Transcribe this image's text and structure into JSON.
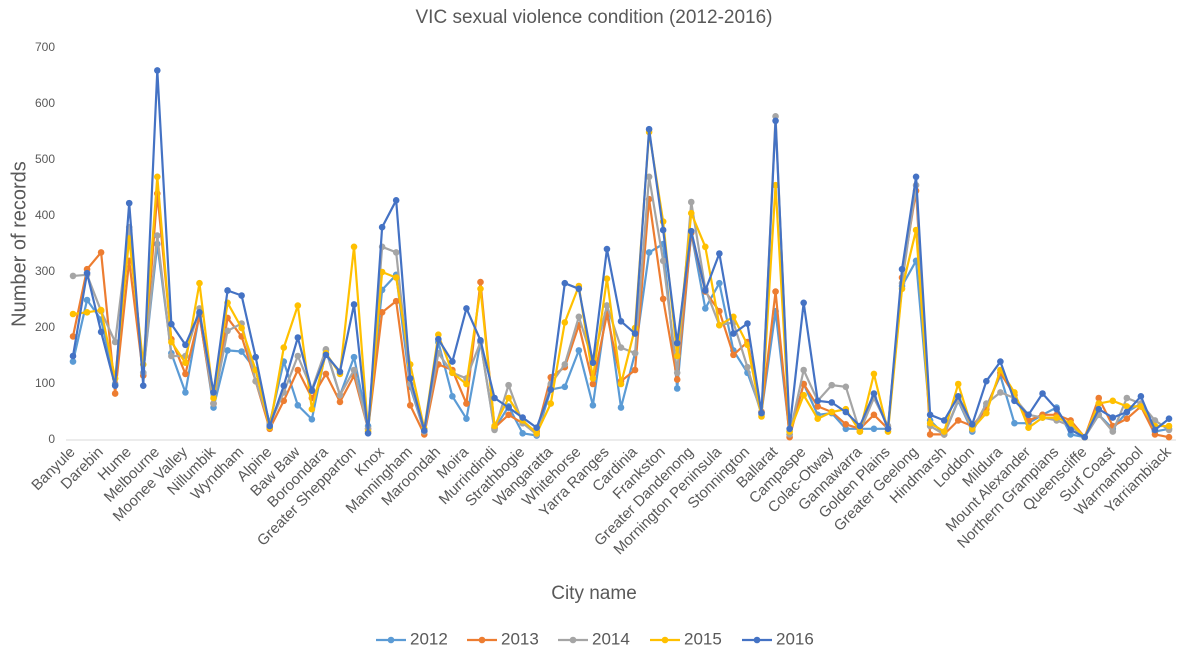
{
  "chart_data": {
    "type": "line",
    "title": "VIC sexual violence condition (2012-2016)",
    "x_label": "City name",
    "y_label": "Number of records",
    "categories": [
      "Banyule",
      null,
      "Darebin",
      null,
      "Hume",
      null,
      "Melbourne",
      null,
      "Moonee Valley",
      null,
      "Nillumbik",
      null,
      "Wyndham",
      null,
      "Alpine",
      null,
      "Baw Baw",
      null,
      "Boroondara",
      null,
      "Greater Shepparton",
      null,
      "Knox",
      null,
      "Manningham",
      null,
      "Maroondah",
      null,
      "Moira",
      null,
      "Murrindindi",
      null,
      "Strathbogie",
      null,
      "Wangaratta",
      null,
      "Whitehorse",
      null,
      "Yarra Ranges",
      null,
      "Cardinia",
      null,
      "Frankston",
      null,
      "Greater Dandenong",
      null,
      "Mornington Peninsula",
      null,
      "Stonnington",
      null,
      "Ballarat",
      null,
      "Campaspe",
      null,
      "Colac-Otway",
      null,
      "Gannawarra",
      null,
      "Golden Plains",
      null,
      "Greater Geelong",
      null,
      "Hindmarsh",
      null,
      "Loddon",
      null,
      "Mildura",
      null,
      "Mount Alexander",
      null,
      "Northern Grampians",
      null,
      "Queenscliffe",
      null,
      "Surf Coast",
      null,
      "Warrnambool",
      null,
      "Yarriambiack"
    ],
    "series": [
      {
        "name": "2012",
        "color": "#5b9bd5",
        "values": [
          140,
          250,
          215,
          100,
          375,
          120,
          350,
          155,
          85,
          225,
          58,
          160,
          158,
          125,
          30,
          140,
          62,
          37,
          160,
          80,
          148,
          25,
          268,
          295,
          95,
          15,
          175,
          78,
          38,
          175,
          20,
          60,
          12,
          8,
          90,
          95,
          160,
          62,
          240,
          58,
          155,
          335,
          350,
          92,
          370,
          235,
          280,
          160,
          120,
          50,
          230,
          10,
          100,
          45,
          48,
          20,
          20,
          20,
          20,
          275,
          320,
          35,
          10,
          70,
          15,
          60,
          115,
          30,
          30,
          45,
          58,
          10,
          5,
          45,
          20,
          50,
          65,
          15,
          20
        ]
      },
      {
        "name": "2013",
        "color": "#ed7d31",
        "values": [
          185,
          305,
          335,
          83,
          320,
          115,
          440,
          180,
          118,
          222,
          65,
          218,
          185,
          105,
          20,
          70,
          125,
          75,
          118,
          68,
          115,
          20,
          228,
          248,
          62,
          10,
          135,
          125,
          65,
          282,
          22,
          45,
          30,
          15,
          112,
          130,
          205,
          100,
          225,
          105,
          125,
          430,
          252,
          108,
          370,
          265,
          230,
          152,
          175,
          50,
          265,
          5,
          100,
          60,
          50,
          28,
          20,
          45,
          20,
          290,
          445,
          10,
          10,
          35,
          25,
          55,
          120,
          80,
          35,
          45,
          45,
          35,
          5,
          75,
          25,
          38,
          60,
          10,
          5
        ]
      },
      {
        "name": "2014",
        "color": "#a5a5a5",
        "values": [
          293,
          295,
          230,
          175,
          380,
          120,
          365,
          150,
          150,
          235,
          65,
          195,
          208,
          105,
          28,
          85,
          150,
          90,
          162,
          80,
          125,
          20,
          345,
          335,
          100,
          15,
          155,
          120,
          110,
          175,
          18,
          98,
          30,
          10,
          100,
          135,
          220,
          140,
          240,
          165,
          155,
          470,
          320,
          120,
          425,
          270,
          205,
          210,
          130,
          45,
          578,
          10,
          125,
          70,
          98,
          95,
          15,
          75,
          25,
          280,
          455,
          25,
          10,
          72,
          18,
          65,
          85,
          75,
          45,
          40,
          35,
          25,
          5,
          45,
          15,
          75,
          65,
          35,
          18
        ]
      },
      {
        "name": "2015",
        "color": "#ffc000",
        "values": [
          225,
          228,
          232,
          110,
          360,
          135,
          470,
          175,
          138,
          280,
          75,
          245,
          200,
          125,
          22,
          165,
          240,
          55,
          155,
          118,
          345,
          15,
          300,
          290,
          135,
          20,
          188,
          120,
          100,
          270,
          25,
          75,
          35,
          12,
          65,
          210,
          275,
          110,
          288,
          100,
          200,
          550,
          390,
          150,
          405,
          345,
          205,
          220,
          170,
          42,
          455,
          15,
          80,
          38,
          50,
          55,
          15,
          118,
          15,
          270,
          375,
          30,
          15,
          100,
          20,
          48,
          125,
          85,
          22,
          40,
          40,
          30,
          5,
          65,
          70,
          60,
          60,
          25,
          25
        ]
      },
      {
        "name": "2016",
        "color": "#4472c4",
        "values": [
          150,
          298,
          193,
          97,
          423,
          97,
          660,
          207,
          170,
          228,
          85,
          267,
          258,
          148,
          25,
          97,
          183,
          88,
          152,
          122,
          242,
          12,
          380,
          428,
          110,
          17,
          180,
          140,
          235,
          178,
          75,
          58,
          40,
          22,
          90,
          280,
          270,
          138,
          341,
          212,
          190,
          555,
          375,
          173,
          373,
          267,
          333,
          190,
          208,
          48,
          570,
          20,
          245,
          70,
          67,
          50,
          25,
          83,
          20,
          305,
          470,
          45,
          35,
          78,
          28,
          105,
          140,
          70,
          45,
          83,
          55,
          18,
          5,
          55,
          40,
          50,
          78,
          18,
          38
        ]
      }
    ],
    "ylim": [
      0,
      700
    ],
    "yticks": [
      0,
      100,
      200,
      300,
      400,
      500,
      600,
      700
    ],
    "grid": false,
    "legend": "bottom"
  }
}
